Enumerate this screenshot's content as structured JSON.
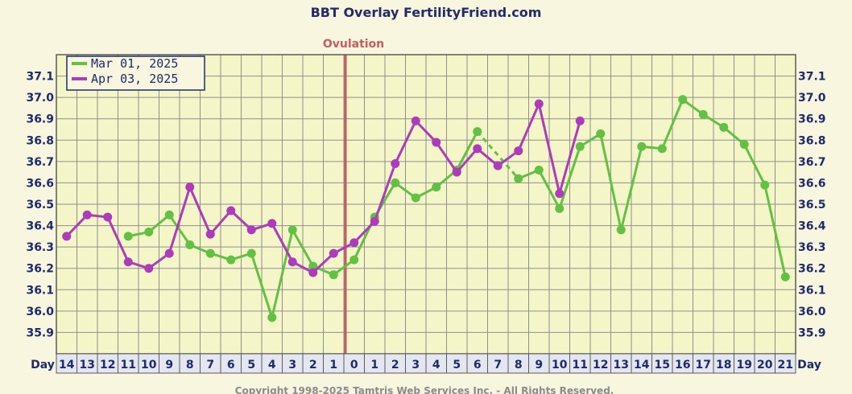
{
  "chart_data": {
    "type": "line",
    "title": "BBT Overlay FertilityFriend.com",
    "ovulation_label": "Ovulation",
    "ovulation_day": 0,
    "xlabel": "Day",
    "categories": [
      14,
      13,
      12,
      11,
      10,
      9,
      8,
      7,
      6,
      5,
      4,
      3,
      2,
      1,
      0,
      1,
      2,
      3,
      4,
      5,
      6,
      7,
      8,
      9,
      10,
      11,
      12,
      13,
      14,
      15,
      16,
      17,
      18,
      19,
      20,
      21
    ],
    "yticks": [
      37.1,
      37.0,
      36.9,
      36.8,
      36.7,
      36.6,
      36.5,
      36.4,
      36.3,
      36.2,
      36.1,
      36.0,
      35.9
    ],
    "ylim": [
      35.8,
      37.2
    ],
    "grid": true,
    "legend_position": "top-left",
    "series": [
      {
        "name": "Mar 01, 2025",
        "color": "#62c043",
        "dashed_segment_from_index": 20,
        "dashed_segment_to_index": 22,
        "values": [
          null,
          null,
          null,
          36.35,
          36.37,
          36.45,
          36.31,
          36.27,
          36.24,
          36.27,
          35.97,
          36.38,
          36.21,
          36.17,
          36.24,
          36.44,
          36.6,
          36.53,
          36.58,
          36.66,
          36.84,
          null,
          36.62,
          36.66,
          36.48,
          36.77,
          36.83,
          36.38,
          36.77,
          36.76,
          36.99,
          36.92,
          36.86,
          36.78,
          36.59,
          36.16
        ]
      },
      {
        "name": "Apr 03, 2025",
        "color": "#ae3bb9",
        "values": [
          36.35,
          36.45,
          36.44,
          36.23,
          36.2,
          36.27,
          36.58,
          36.36,
          36.47,
          36.38,
          36.41,
          36.23,
          36.18,
          36.27,
          36.32,
          36.42,
          36.69,
          36.89,
          36.79,
          36.65,
          36.76,
          36.68,
          36.75,
          36.97,
          36.55,
          36.89,
          null,
          null,
          null,
          null,
          null,
          null,
          null,
          null,
          null,
          null
        ]
      }
    ]
  },
  "footer": {
    "copyright": "Copyright 1998-2025 Tamtris Web Services Inc. - All Rights Reserved."
  }
}
